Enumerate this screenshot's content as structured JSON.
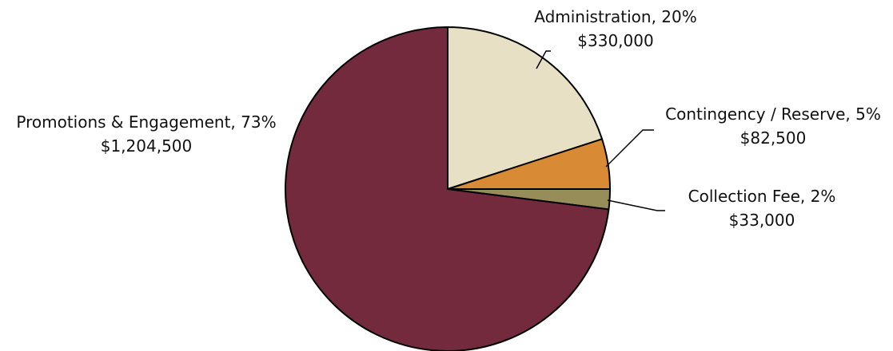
{
  "chart_data": {
    "type": "pie",
    "title": "",
    "slices": [
      {
        "name": "Administration",
        "percent_label": "20%",
        "value": 330000,
        "value_label": "$330,000",
        "color": "#E8E0C5"
      },
      {
        "name": "Contingency / Reserve",
        "percent_label": "5%",
        "value": 82500,
        "value_label": "$82,500",
        "color": "#D98A35"
      },
      {
        "name": "Collection Fee",
        "percent_label": "2%",
        "value": 33000,
        "value_label": "$33,000",
        "color": "#968D58"
      },
      {
        "name": "Promotions & Engagement",
        "percent_label": "73%",
        "value": 1204500,
        "value_label": "$1,204,500",
        "color": "#722A3C"
      }
    ],
    "start_angle_deg": 0,
    "direction": "clockwise",
    "legend": "none",
    "outline_color": "#000000"
  }
}
